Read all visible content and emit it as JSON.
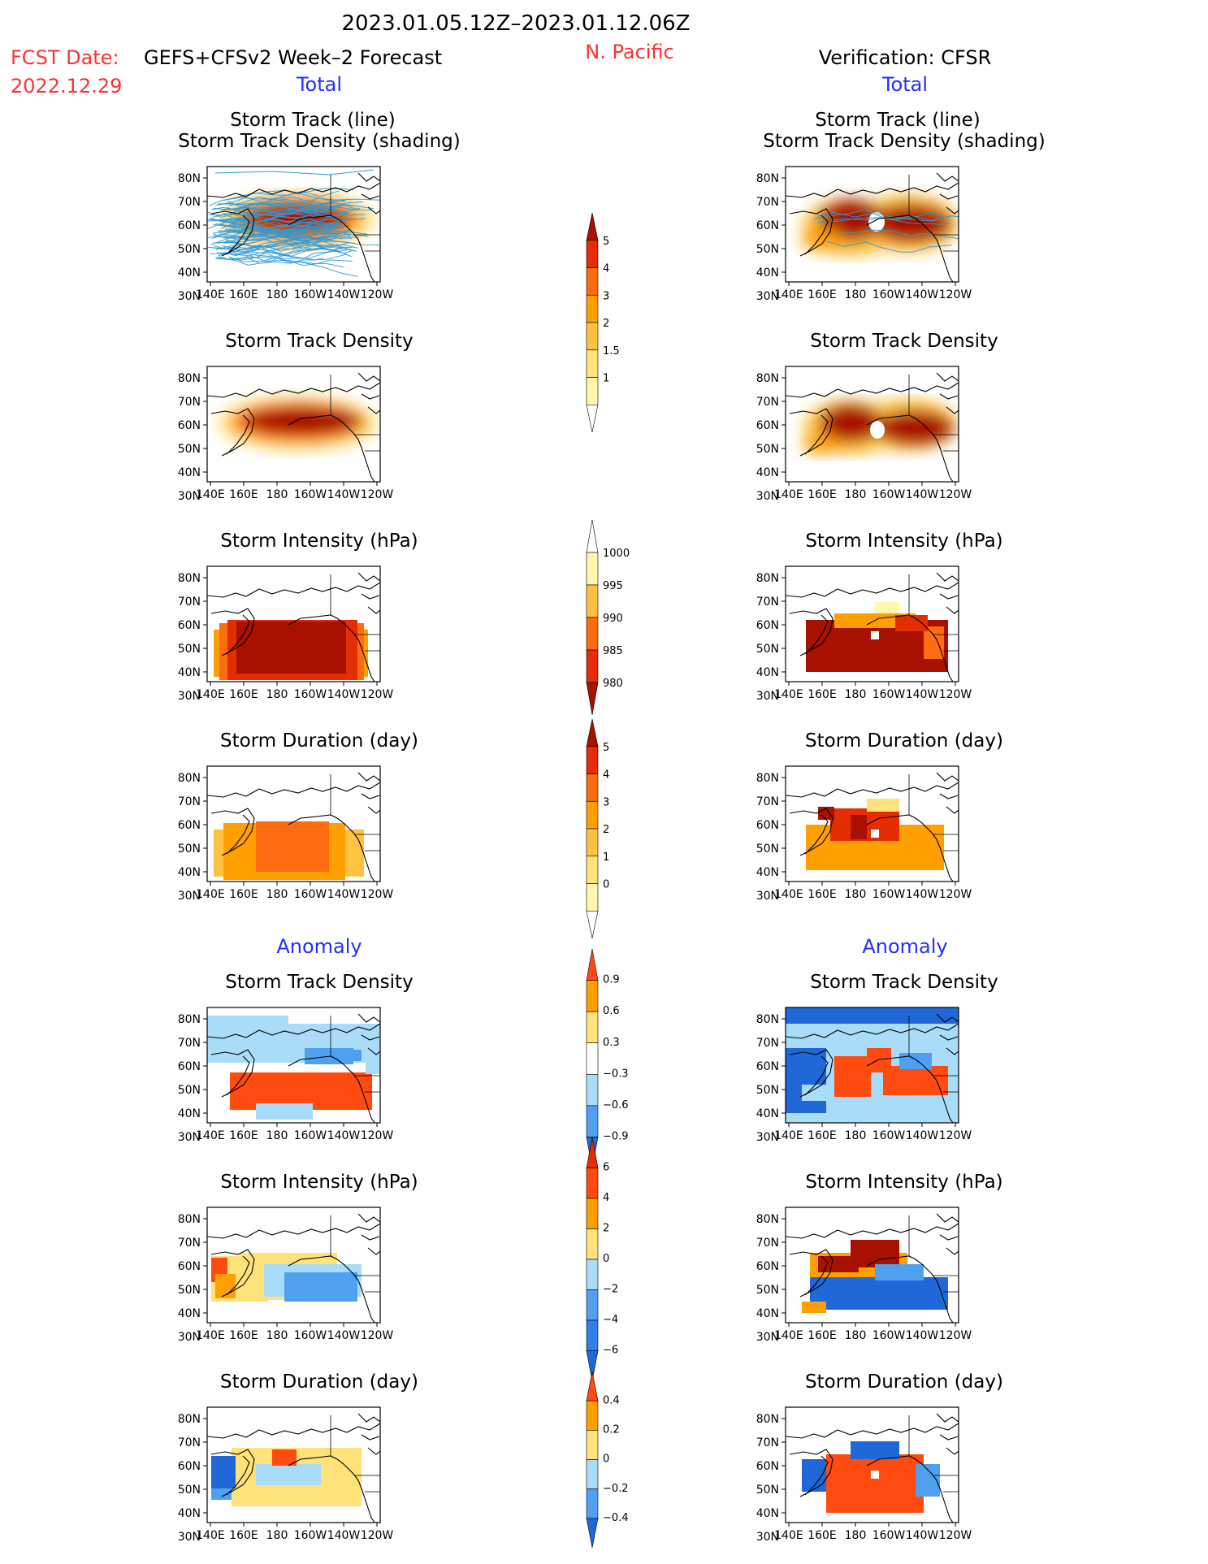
{
  "header": {
    "period": "2023.01.05.12Z–2023.01.12.06Z",
    "region": "N. Pacific",
    "fcst_label": "FCST Date:",
    "fcst_model": "GEFS+CFSv2 Week–2 Forecast",
    "fcst_date": "2022.12.29",
    "verification": "Verification: CFSR"
  },
  "sections": {
    "total": "Total",
    "anomaly": "Anomaly"
  },
  "panel_titles": {
    "track_line": "Storm Track (line)",
    "track_shading": "Storm Track Density (shading)",
    "density": "Storm Track Density",
    "intensity": "Storm Intensity (hPa)",
    "duration": "Storm Duration (day)"
  },
  "axes": {
    "lat_labels": [
      "80N",
      "70N",
      "60N",
      "50N",
      "40N",
      "30N"
    ],
    "lon_labels": [
      "140E",
      "160E",
      "180",
      "160W",
      "140W",
      "120W"
    ]
  },
  "colorbars": {
    "density": {
      "labels": [
        "5",
        "4",
        "3",
        "2",
        "1.5",
        "1"
      ]
    },
    "intensity": {
      "labels": [
        "1000",
        "995",
        "990",
        "985",
        "980"
      ]
    },
    "duration": {
      "labels": [
        "5",
        "4",
        "3",
        "2",
        "1",
        "0"
      ]
    },
    "density_anom": {
      "labels": [
        "0.9",
        "0.6",
        "0.3",
        "−0.3",
        "−0.6",
        "−0.9"
      ]
    },
    "intensity_anom": {
      "labels": [
        "6",
        "4",
        "2",
        "0",
        "−2",
        "−4",
        "−6"
      ]
    },
    "duration_anom": {
      "labels": [
        "0.4",
        "0.2",
        "0",
        "−0.2",
        "−0.4"
      ]
    }
  },
  "colors": {
    "title_red": "#ff3030",
    "label_blue": "#2030ff",
    "warm": [
      "#fff6b0",
      "#ffe27a",
      "#ffc240",
      "#ffa000",
      "#ff6c10",
      "#e42d00",
      "#a81000"
    ],
    "anom": [
      "#2068d8",
      "#50a0f0",
      "#a8dcf8",
      "#ffffff",
      "#ffe27a",
      "#ffa000",
      "#ff4a10"
    ]
  }
}
